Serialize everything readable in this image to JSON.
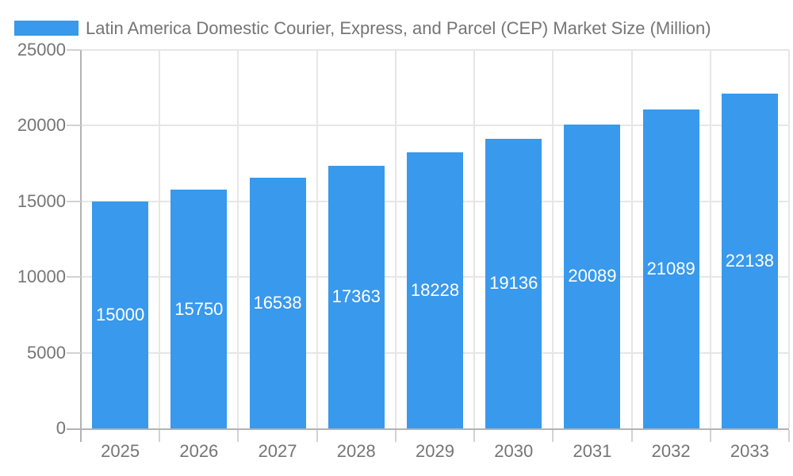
{
  "legend": {
    "label": "Latin America Domestic Courier, Express, and Parcel (CEP) Market Size (Million)",
    "swatch_color": "#3999ed"
  },
  "chart_data": {
    "type": "bar",
    "title": "Latin America Domestic Courier, Express, and Parcel (CEP) Market Size (Million)",
    "categories": [
      "2025",
      "2026",
      "2027",
      "2028",
      "2029",
      "2030",
      "2031",
      "2032",
      "2033"
    ],
    "values": [
      15000,
      15750,
      16538,
      17363,
      18228,
      19136,
      20089,
      21089,
      22138
    ],
    "bar_labels": [
      "15000",
      "15750",
      "16538",
      "17363",
      "18228",
      "19136",
      "20089",
      "21089",
      "22138"
    ],
    "xlabel": "",
    "ylabel": "",
    "ylim": [
      0,
      25000
    ],
    "yticks": [
      0,
      5000,
      10000,
      15000,
      20000,
      25000
    ],
    "grid": true,
    "legend_position": "top-left",
    "colors": {
      "bar": "#3999ec",
      "bar_label_text": "#ffffff",
      "axis_text": "#757575",
      "gridline": "#e6e6e6",
      "axis_line": "#b3b3b3",
      "tick": "#d2d2d2",
      "background": "#ffffff"
    }
  }
}
